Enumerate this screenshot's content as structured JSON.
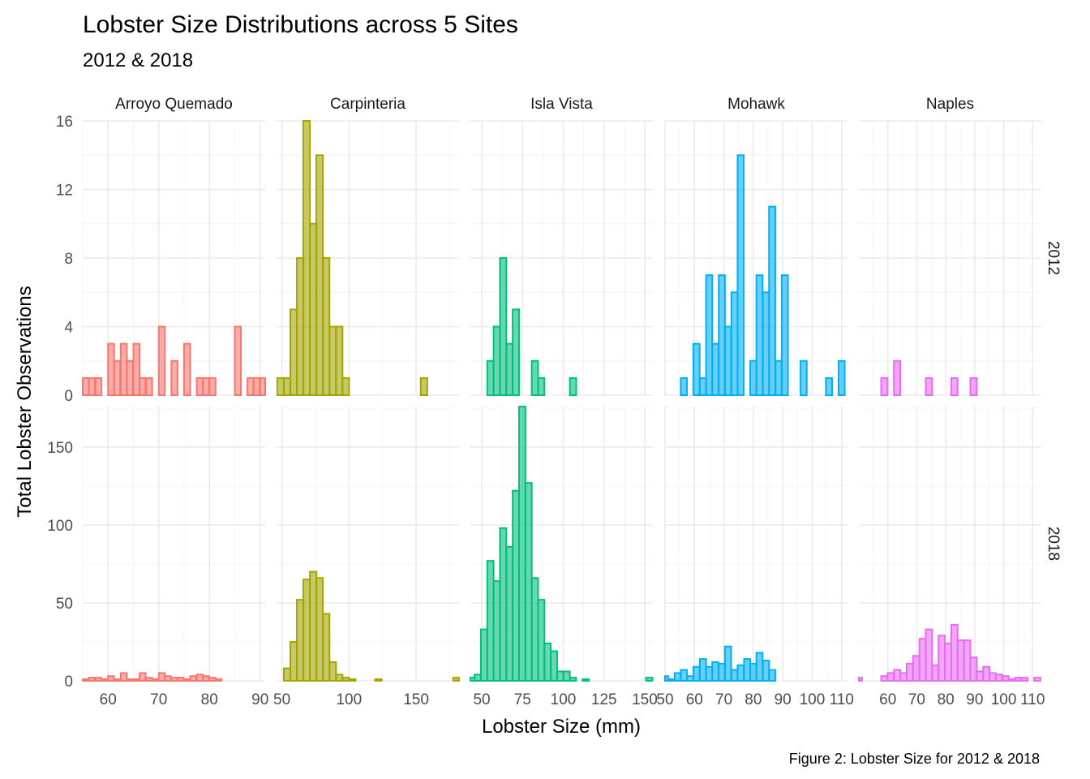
{
  "chart_data": {
    "type": "bar",
    "title": "Lobster Size Distributions across 5 Sites",
    "subtitle": "2012 & 2018",
    "xlabel": "Lobster Size (mm)",
    "ylabel": "Total Lobster Observations",
    "caption": "Figure 2: Lobster Size for 2012 & 2018",
    "rows": [
      "2012",
      "2018"
    ],
    "sites": [
      {
        "name": "Arroyo Quemado",
        "color": "#F8766D",
        "xlim": [
          55,
          91
        ],
        "xticks": [
          60,
          70,
          80,
          90
        ],
        "series": {
          "2012": {
            "x": [
              55.6,
              56.8,
              58.1,
              59.3,
              60.6,
              61.8,
              63.1,
              64.3,
              65.6,
              66.8,
              68.1,
              69.3,
              70.6,
              71.8,
              73.1,
              74.3,
              75.6,
              76.8,
              78.1,
              79.3,
              80.6,
              81.8,
              83.1,
              84.3,
              85.6,
              86.8,
              88.1,
              89.3,
              90.6
            ],
            "y": [
              1,
              1,
              1,
              0,
              3,
              2,
              3,
              2,
              3,
              1,
              1,
              0,
              4,
              0,
              2,
              0,
              3,
              0,
              1,
              1,
              1,
              0,
              0,
              0,
              4,
              0,
              1,
              1,
              1
            ]
          },
          "2018": {
            "x": [
              55.6,
              56.8,
              58.1,
              59.3,
              60.6,
              61.8,
              63.1,
              64.3,
              65.6,
              66.8,
              68.1,
              69.3,
              70.6,
              71.8,
              73.1,
              74.3,
              75.6,
              76.8,
              78.1,
              79.3,
              80.6,
              81.8,
              83.1,
              84.3,
              85.6,
              86.8,
              88.1,
              89.3,
              90.6
            ],
            "y": [
              1,
              2,
              2,
              1,
              3,
              1,
              5,
              1,
              1,
              5,
              2,
              1,
              5,
              3,
              2,
              2,
              1,
              3,
              4,
              3,
              2,
              1,
              0,
              0,
              0,
              0,
              0,
              0,
              0
            ]
          }
        }
      },
      {
        "name": "Carpinteria",
        "color": "#A3A500",
        "xlim": [
          46,
          182
        ],
        "xticks": [
          50,
          100,
          150
        ],
        "series": {
          "2012": {
            "x": [
              49,
              53.9,
              58.7,
              63.6,
              68.4,
              73.3,
              78.1,
              83,
              87.9,
              92.7,
              97.6,
              102.4,
              107.3,
              112.1,
              117,
              121.9,
              126.7,
              131.6,
              136.4,
              141.3,
              146.1,
              151,
              155.9,
              160.7,
              165.6,
              170.4,
              175.3,
              180.1
            ],
            "y": [
              1,
              1,
              5,
              8,
              16,
              10,
              14,
              8,
              4,
              4,
              1,
              0,
              0,
              0,
              0,
              0,
              0,
              0,
              0,
              0,
              0,
              0,
              1,
              0,
              0,
              0,
              0,
              0
            ]
          },
          "2018": {
            "x": [
              49,
              53.9,
              58.7,
              63.6,
              68.4,
              73.3,
              78.1,
              83,
              87.9,
              92.7,
              97.6,
              102.4,
              107.3,
              112.1,
              117,
              121.9,
              126.7,
              131.6,
              136.4,
              141.3,
              146.1,
              151,
              155.9,
              160.7,
              165.6,
              170.4,
              175.3,
              180.1
            ],
            "y": [
              0,
              8,
              25,
              52,
              65,
              70,
              66,
              43,
              12,
              4,
              2,
              1,
              0,
              0,
              0,
              1,
              0,
              0,
              0,
              0,
              0,
              0,
              0,
              0,
              0,
              0,
              0,
              2
            ]
          }
        }
      },
      {
        "name": "Isla Vista",
        "color": "#00BF7D",
        "xlim": [
          43,
          155
        ],
        "xticks": [
          50,
          75,
          100,
          125,
          150
        ],
        "series": {
          "2012": {
            "x": [
              43.6,
              47.5,
              51.4,
              55.3,
              59.2,
              63.1,
              67,
              70.9,
              74.8,
              78.7,
              82.6,
              86.5,
              90.4,
              94.3,
              98.2,
              102.1,
              106,
              109.9,
              113.8,
              117.7,
              121.6,
              125.5,
              129.4,
              133.3,
              137.2,
              141.1,
              145,
              148.9,
              152.8
            ],
            "y": [
              0,
              0,
              0,
              2,
              4,
              8,
              3,
              5,
              0,
              0,
              2,
              1,
              0,
              0,
              0,
              0,
              1,
              0,
              0,
              0,
              0,
              0,
              0,
              0,
              0,
              0,
              0,
              0,
              0
            ]
          },
          "2018": {
            "x": [
              43.6,
              47.5,
              51.4,
              55.3,
              59.2,
              63.1,
              67,
              70.9,
              74.8,
              78.7,
              82.6,
              86.5,
              90.4,
              94.3,
              98.2,
              102.1,
              106,
              109.9,
              113.8,
              117.7,
              121.6,
              125.5,
              129.4,
              133.3,
              137.2,
              141.1,
              145,
              148.9,
              152.8
            ],
            "y": [
              2,
              4,
              33,
              77,
              64,
              98,
              86,
              122,
              176,
              127,
              66,
              52,
              24,
              19,
              6,
              6,
              2,
              0,
              1,
              0,
              0,
              0,
              0,
              0,
              0,
              0,
              0,
              0,
              2
            ]
          }
        }
      },
      {
        "name": "Mohawk",
        "color": "#00B0F6",
        "xlim": [
          50,
          112
        ],
        "xticks": [
          50,
          60,
          70,
          80,
          90,
          100,
          110
        ],
        "series": {
          "2012": {
            "x": [
              50,
              52.1,
              54.3,
              56.4,
              58.6,
              60.7,
              62.9,
              65,
              67.1,
              69.3,
              71.4,
              73.6,
              75.7,
              77.9,
              80,
              82.1,
              84.3,
              86.4,
              88.6,
              90.7,
              92.9,
              95,
              97.1,
              99.3,
              101.4,
              103.6,
              105.7,
              107.9,
              110
            ],
            "y": [
              0,
              0,
              0,
              1,
              0,
              3,
              1,
              7,
              3,
              7,
              4,
              6,
              14,
              0,
              2,
              7,
              6,
              11,
              2,
              7,
              0,
              0,
              2,
              0,
              0,
              0,
              1,
              0,
              2
            ]
          },
          "2018": {
            "x": [
              50,
              52.1,
              54.3,
              56.4,
              58.6,
              60.7,
              62.9,
              65,
              67.1,
              69.3,
              71.4,
              73.6,
              75.7,
              77.9,
              80,
              82.1,
              84.3,
              86.4,
              88.6,
              90.7,
              92.9,
              95,
              97.1,
              99.3,
              101.4,
              103.6,
              105.7,
              107.9,
              110
            ],
            "y": [
              3,
              1,
              5,
              7,
              3,
              9,
              14,
              9,
              12,
              11,
              22,
              7,
              10,
              14,
              11,
              18,
              13,
              7,
              0,
              0,
              0,
              0,
              0,
              0,
              0,
              0,
              0,
              0,
              0
            ]
          }
        }
      },
      {
        "name": "Naples",
        "color": "#E76BF3",
        "xlim": [
          50,
          113
        ],
        "xticks": [
          60,
          70,
          80,
          90,
          100,
          110
        ],
        "series": {
          "2012": {
            "x": [
              50,
              52.2,
              54.4,
              56.6,
              58.8,
              61,
              63.2,
              65.4,
              67.6,
              69.8,
              72,
              74.2,
              76.4,
              78.6,
              80.8,
              83,
              85.2,
              87.4,
              89.6,
              91.8,
              94,
              96.2,
              98.4,
              100.6,
              102.8,
              105,
              107.2,
              109.4,
              111.6
            ],
            "y": [
              0,
              0,
              0,
              0,
              1,
              0,
              2,
              0,
              0,
              0,
              0,
              1,
              0,
              0,
              0,
              1,
              0,
              0,
              1,
              0,
              0,
              0,
              0,
              0,
              0,
              0,
              0,
              0,
              0
            ]
          },
          "2018": {
            "x": [
              50,
              52.2,
              54.4,
              56.6,
              58.8,
              61,
              63.2,
              65.4,
              67.6,
              69.8,
              72,
              74.2,
              76.4,
              78.6,
              80.8,
              83,
              85.2,
              87.4,
              89.6,
              91.8,
              94,
              96.2,
              98.4,
              100.6,
              102.8,
              105,
              107.2,
              109.4,
              111.6
            ],
            "y": [
              2,
              0,
              0,
              0,
              3,
              5,
              7,
              5,
              11,
              16,
              27,
              33,
              10,
              29,
              24,
              36,
              26,
              26,
              15,
              6,
              9,
              5,
              4,
              3,
              1,
              2,
              2,
              0,
              2
            ]
          }
        }
      }
    ],
    "rows_config": {
      "2012": {
        "ylim": [
          0,
          16
        ],
        "yticks": [
          0,
          4,
          8,
          12,
          16
        ]
      },
      "2018": {
        "ylim": [
          0,
          176
        ],
        "yticks": [
          0,
          50,
          100,
          150
        ]
      }
    },
    "grid": true,
    "legend": "none"
  }
}
